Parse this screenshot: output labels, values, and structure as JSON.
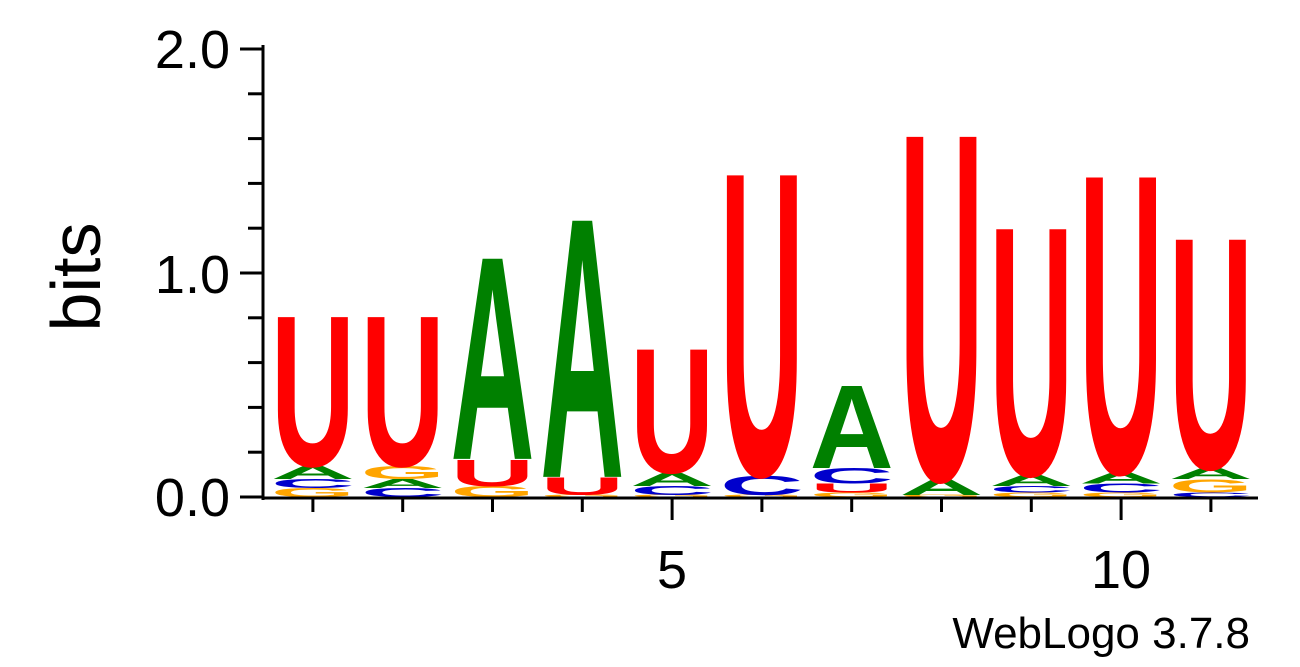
{
  "chart_data": {
    "type": "sequence-logo",
    "ylabel": "bits",
    "ylim": [
      0,
      2
    ],
    "yticks": [
      "0.0",
      "1.0",
      "2.0"
    ],
    "xticks_labeled": [
      {
        "position": 5,
        "label": "5"
      },
      {
        "position": 10,
        "label": "10"
      }
    ],
    "positions": [
      1,
      2,
      3,
      4,
      5,
      6,
      7,
      8,
      9,
      10,
      11
    ],
    "credit": "WebLogo 3.7.8",
    "colors": {
      "A": "#008000",
      "C": "#0000cc",
      "G": "#ffa500",
      "U": "#ff0000"
    },
    "stacks": [
      [
        {
          "letter": "G",
          "bits": 0.04
        },
        {
          "letter": "C",
          "bits": 0.04
        },
        {
          "letter": "A",
          "bits": 0.06
        },
        {
          "letter": "U",
          "bits": 0.69
        }
      ],
      [
        {
          "letter": "C",
          "bits": 0.04
        },
        {
          "letter": "A",
          "bits": 0.04
        },
        {
          "letter": "G",
          "bits": 0.06
        },
        {
          "letter": "U",
          "bits": 0.69
        }
      ],
      [
        {
          "letter": "G",
          "bits": 0.05
        },
        {
          "letter": "U",
          "bits": 0.12
        },
        {
          "letter": "A",
          "bits": 0.93
        }
      ],
      [
        {
          "letter": "G",
          "bits": 0.01
        },
        {
          "letter": "U",
          "bits": 0.08
        },
        {
          "letter": "A",
          "bits": 1.19
        }
      ],
      [
        {
          "letter": "G",
          "bits": 0.01
        },
        {
          "letter": "C",
          "bits": 0.04
        },
        {
          "letter": "A",
          "bits": 0.06
        },
        {
          "letter": "U",
          "bits": 0.57
        }
      ],
      [
        {
          "letter": "G",
          "bits": 0.01
        },
        {
          "letter": "C",
          "bits": 0.09
        },
        {
          "letter": "U",
          "bits": 1.39
        }
      ],
      [
        {
          "letter": "G",
          "bits": 0.02
        },
        {
          "letter": "U",
          "bits": 0.04
        },
        {
          "letter": "C",
          "bits": 0.07
        },
        {
          "letter": "A",
          "bits": 0.38
        }
      ],
      [
        {
          "letter": "G",
          "bits": 0.01
        },
        {
          "letter": "A",
          "bits": 0.07
        },
        {
          "letter": "U",
          "bits": 1.59
        }
      ],
      [
        {
          "letter": "G",
          "bits": 0.02
        },
        {
          "letter": "C",
          "bits": 0.03
        },
        {
          "letter": "A",
          "bits": 0.05
        },
        {
          "letter": "U",
          "bits": 1.14
        }
      ],
      [
        {
          "letter": "G",
          "bits": 0.02
        },
        {
          "letter": "C",
          "bits": 0.04
        },
        {
          "letter": "A",
          "bits": 0.05
        },
        {
          "letter": "U",
          "bits": 1.37
        }
      ],
      [
        {
          "letter": "C",
          "bits": 0.02
        },
        {
          "letter": "G",
          "bits": 0.06
        },
        {
          "letter": "A",
          "bits": 0.05
        },
        {
          "letter": "U",
          "bits": 1.06
        }
      ]
    ]
  }
}
